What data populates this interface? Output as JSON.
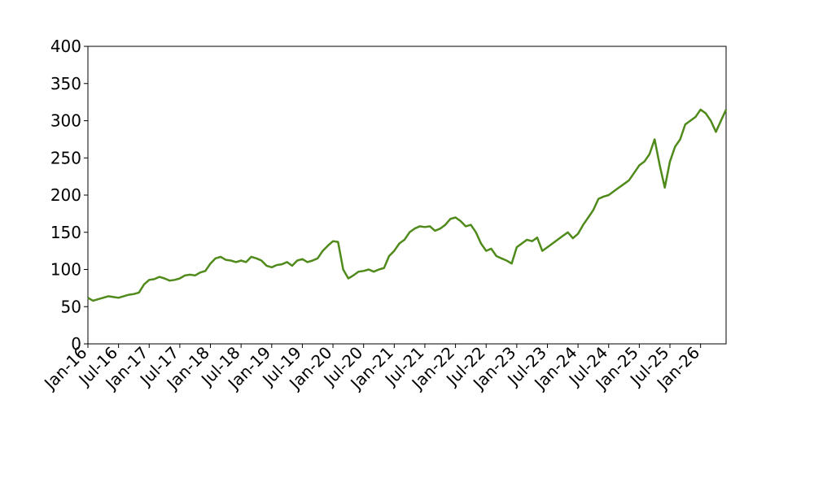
{
  "chart_data": {
    "type": "line",
    "x": [
      "2016-01",
      "2016-02",
      "2016-03",
      "2016-04",
      "2016-05",
      "2016-06",
      "2016-07",
      "2016-08",
      "2016-09",
      "2016-10",
      "2016-11",
      "2016-12",
      "2017-01",
      "2017-02",
      "2017-03",
      "2017-04",
      "2017-05",
      "2017-06",
      "2017-07",
      "2017-08",
      "2017-09",
      "2017-10",
      "2017-11",
      "2017-12",
      "2018-01",
      "2018-02",
      "2018-03",
      "2018-04",
      "2018-05",
      "2018-06",
      "2018-07",
      "2018-08",
      "2018-09",
      "2018-10",
      "2018-11",
      "2018-12",
      "2019-01",
      "2019-02",
      "2019-03",
      "2019-04",
      "2019-05",
      "2019-06",
      "2019-07",
      "2019-08",
      "2019-09",
      "2019-10",
      "2019-11",
      "2019-12",
      "2020-01",
      "2020-02",
      "2020-03",
      "2020-04",
      "2020-05",
      "2020-06",
      "2020-07",
      "2020-08",
      "2020-09",
      "2020-10",
      "2020-11",
      "2020-12",
      "2021-01",
      "2021-02",
      "2021-03",
      "2021-04",
      "2021-05",
      "2021-06",
      "2021-07",
      "2021-08",
      "2021-09",
      "2021-10",
      "2021-11",
      "2021-12",
      "2022-01",
      "2022-02",
      "2022-03",
      "2022-04",
      "2022-05",
      "2022-06",
      "2022-07",
      "2022-08",
      "2022-09",
      "2022-10",
      "2022-11",
      "2022-12",
      "2023-01",
      "2023-02",
      "2023-03",
      "2023-04",
      "2023-05",
      "2023-06",
      "2023-07",
      "2023-08",
      "2023-09",
      "2023-10",
      "2023-11",
      "2023-12",
      "2024-01",
      "2024-02",
      "2024-03",
      "2024-04",
      "2024-05",
      "2024-06",
      "2024-07",
      "2024-08",
      "2024-09",
      "2024-10",
      "2024-11",
      "2024-12",
      "2025-01",
      "2025-02",
      "2025-03",
      "2025-04",
      "2025-05",
      "2025-06",
      "2025-07",
      "2025-08",
      "2025-09",
      "2025-10",
      "2025-11",
      "2025-12",
      "2026-01",
      "2026-02",
      "2026-03",
      "2026-04",
      "2026-05",
      "2026-06"
    ],
    "series": [
      {
        "color": "#4f8a1b",
        "values": [
          62,
          58,
          60,
          62,
          64,
          63,
          62,
          64,
          66,
          67,
          69,
          80,
          86,
          87,
          90,
          88,
          85,
          86,
          88,
          92,
          93,
          92,
          96,
          98,
          108,
          115,
          117,
          113,
          112,
          110,
          112,
          110,
          117,
          115,
          112,
          105,
          103,
          106,
          107,
          110,
          105,
          112,
          114,
          110,
          112,
          115,
          125,
          132,
          138,
          137,
          100,
          88,
          92,
          97,
          98,
          100,
          97,
          100,
          102,
          118,
          125,
          135,
          140,
          150,
          155,
          158,
          157,
          158,
          152,
          155,
          160,
          168,
          170,
          165,
          158,
          160,
          150,
          135,
          125,
          128,
          118,
          115,
          112,
          108,
          130,
          135,
          140,
          138,
          143,
          125,
          130,
          135,
          140,
          145,
          150,
          142,
          148,
          160,
          170,
          180,
          195,
          198,
          200,
          205,
          210,
          215,
          220,
          230,
          240,
          245,
          255,
          275,
          240,
          210,
          245,
          265,
          275,
          295,
          300,
          305,
          315,
          310,
          300,
          285,
          300,
          315
        ]
      }
    ],
    "xlim": [
      "2016-01",
      "2026-06"
    ],
    "xticks": [
      {
        "value": "2016-01",
        "label": "Jan-16"
      },
      {
        "value": "2016-07",
        "label": "Jul-16"
      },
      {
        "value": "2017-01",
        "label": "Jan-17"
      },
      {
        "value": "2017-07",
        "label": "Jul-17"
      },
      {
        "value": "2018-01",
        "label": "Jan-18"
      },
      {
        "value": "2018-07",
        "label": "Jul-18"
      },
      {
        "value": "2019-01",
        "label": "Jan-19"
      },
      {
        "value": "2019-07",
        "label": "Jul-19"
      },
      {
        "value": "2020-01",
        "label": "Jan-20"
      },
      {
        "value": "2020-07",
        "label": "Jul-20"
      },
      {
        "value": "2021-01",
        "label": "Jan-21"
      },
      {
        "value": "2021-07",
        "label": "Jul-21"
      },
      {
        "value": "2022-01",
        "label": "Jan-22"
      },
      {
        "value": "2022-07",
        "label": "Jul-22"
      },
      {
        "value": "2023-01",
        "label": "Jan-23"
      },
      {
        "value": "2023-07",
        "label": "Jul-23"
      },
      {
        "value": "2024-01",
        "label": "Jan-24"
      },
      {
        "value": "2024-07",
        "label": "Jul-24"
      },
      {
        "value": "2025-01",
        "label": "Jan-25"
      },
      {
        "value": "2025-07",
        "label": "Jul-25"
      },
      {
        "value": "2026-01",
        "label": "Jan-26"
      }
    ],
    "ylim": [
      0,
      400
    ],
    "yticks": [
      0,
      50,
      100,
      150,
      200,
      250,
      300,
      350,
      400
    ],
    "grid": false
  }
}
